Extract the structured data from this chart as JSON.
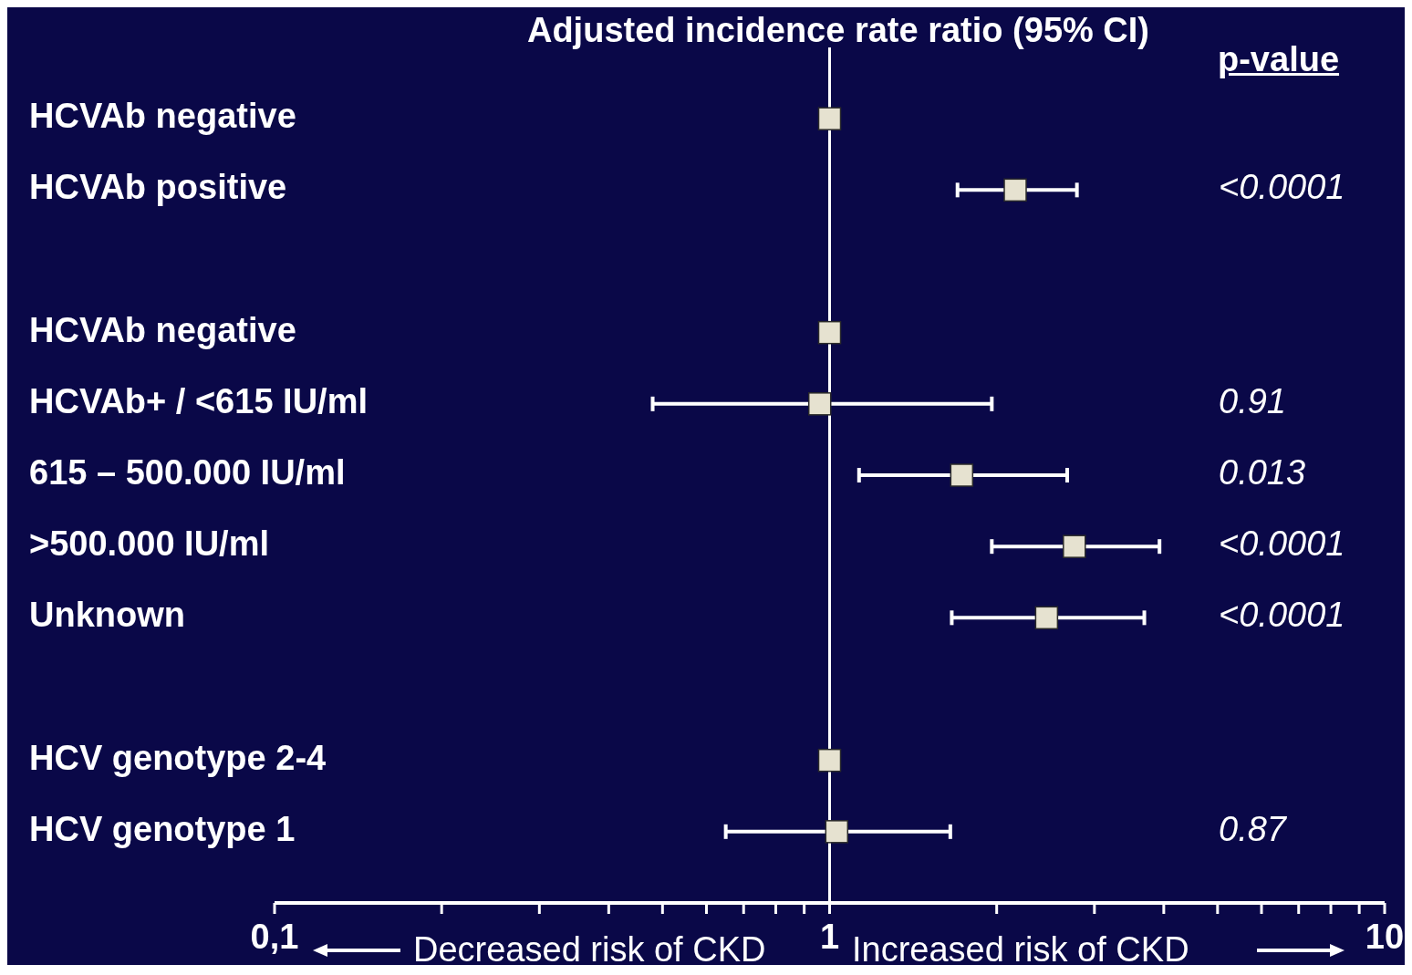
{
  "chart_data": {
    "type": "scatter",
    "orientation": "horizontal",
    "title": "Adjusted incidence rate ratio (95% CI)",
    "categories": [
      "HCVAb negative",
      "HCVAb positive",
      null,
      "HCVAb negative",
      "HCVAb+ / <615 IU/ml",
      "615 – 500.000 IU/ml",
      ">500.000 IU/ml",
      "Unknown",
      null,
      "HCV genotype 2-4",
      "HCV genotype 1"
    ],
    "values": [
      1,
      2.16,
      null,
      1,
      0.96,
      1.73,
      2.76,
      2.46,
      null,
      1,
      1.03
    ],
    "errors": [
      null,
      [
        1.7,
        2.79
      ],
      null,
      null,
      [
        0.48,
        1.96
      ],
      [
        1.13,
        2.68
      ],
      [
        1.96,
        3.93
      ],
      [
        1.66,
        3.69
      ],
      null,
      null,
      [
        0.65,
        1.65
      ]
    ],
    "color": "#e6e2d0",
    "marker": "square",
    "log": "x",
    "xlim": [
      0.1,
      10
    ],
    "xticks": [
      {
        "value": 0.1,
        "label": "0,1"
      },
      {
        "value": 0.2,
        "label": null
      },
      {
        "value": 0.3,
        "label": null
      },
      {
        "value": 0.4,
        "label": null
      },
      {
        "value": 0.5,
        "label": null
      },
      {
        "value": 0.6,
        "label": null
      },
      {
        "value": 0.7,
        "label": null
      },
      {
        "value": 0.8,
        "label": null
      },
      {
        "value": 0.9,
        "label": null
      },
      1,
      {
        "value": 2,
        "label": null
      },
      {
        "value": 3,
        "label": null
      },
      {
        "value": 4,
        "label": null
      },
      {
        "value": 5,
        "label": null
      },
      {
        "value": 6,
        "label": null
      },
      {
        "value": 7,
        "label": null
      },
      {
        "value": 8,
        "label": null
      },
      {
        "value": 9,
        "label": null
      },
      10
    ],
    "ref_lines": [
      {
        "axis": "x",
        "value": 1,
        "color": "#ffffff"
      }
    ],
    "annotations": [
      "p-value",
      "<0.0001",
      "0.91",
      "0.013",
      "<0.0001",
      "<0.0001",
      "0.87",
      "Decreased risk of CKD",
      "Increased risk of CKD"
    ]
  }
}
